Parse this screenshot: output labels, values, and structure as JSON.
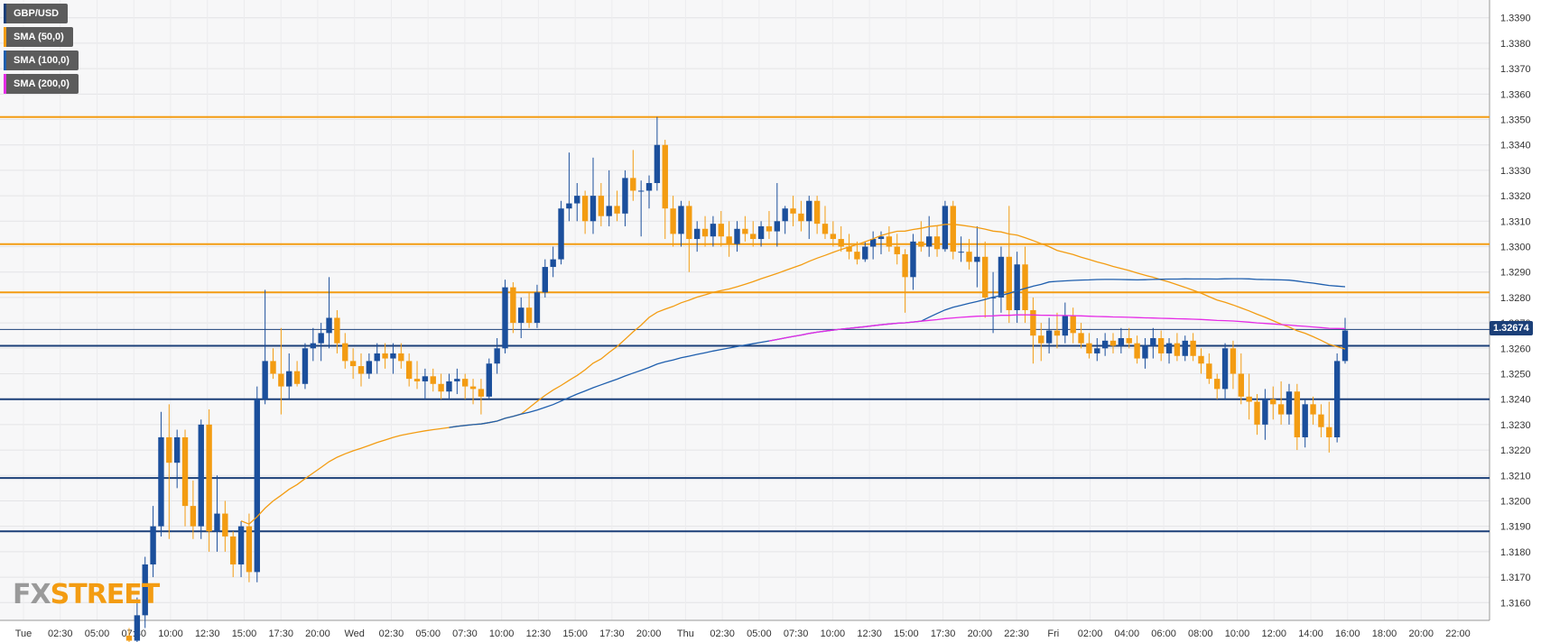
{
  "chart_data": {
    "type": "candlestick",
    "symbol": "GBP/USD",
    "legend": [
      {
        "label": "GBP/USD",
        "color": "#1b3f78"
      },
      {
        "label": "SMA (50,0)",
        "color": "#f39c12"
      },
      {
        "label": "SMA (100,0)",
        "color": "#1f5fae"
      },
      {
        "label": "SMA (200,0)",
        "color": "#e52ce6"
      }
    ],
    "ylim": [
      1.3153,
      1.3397
    ],
    "y_ticks": [
      "1.3390",
      "1.3380",
      "1.3370",
      "1.3360",
      "1.3350",
      "1.3340",
      "1.3330",
      "1.3320",
      "1.3310",
      "1.3300",
      "1.3290",
      "1.3280",
      "1.3270",
      "1.3260",
      "1.3250",
      "1.3240",
      "1.3230",
      "1.3220",
      "1.3210",
      "1.3200",
      "1.3190",
      "1.3180",
      "1.3170",
      "1.3160"
    ],
    "x_ticks": [
      "Tue",
      "02:30",
      "05:00",
      "07:30",
      "10:00",
      "12:30",
      "15:00",
      "17:30",
      "20:00",
      "Wed",
      "02:30",
      "05:00",
      "07:30",
      "10:00",
      "12:30",
      "15:00",
      "17:30",
      "20:00",
      "Thu",
      "02:30",
      "05:00",
      "07:30",
      "10:00",
      "12:30",
      "15:00",
      "17:30",
      "20:00",
      "22:30",
      "Fri",
      "02:00",
      "04:00",
      "06:00",
      "08:00",
      "10:00",
      "12:00",
      "14:00",
      "16:00",
      "18:00",
      "20:00",
      "22:00"
    ],
    "current_price": "1.32674",
    "current_price_value": 1.32674,
    "resistance_levels": [
      1.3351,
      1.3301,
      1.3282
    ],
    "support_levels": [
      1.3261,
      1.324,
      1.3209,
      1.3188
    ],
    "candles": [
      {
        "o": 1.3147,
        "h": 1.315,
        "l": 1.314,
        "c": 1.3145
      },
      {
        "o": 1.3145,
        "h": 1.3162,
        "l": 1.314,
        "c": 1.3155
      },
      {
        "o": 1.3155,
        "h": 1.3178,
        "l": 1.315,
        "c": 1.3175
      },
      {
        "o": 1.3175,
        "h": 1.3198,
        "l": 1.317,
        "c": 1.319
      },
      {
        "o": 1.319,
        "h": 1.3235,
        "l": 1.3186,
        "c": 1.3225
      },
      {
        "o": 1.3225,
        "h": 1.3238,
        "l": 1.3185,
        "c": 1.3215
      },
      {
        "o": 1.3215,
        "h": 1.3228,
        "l": 1.3205,
        "c": 1.3225
      },
      {
        "o": 1.3225,
        "h": 1.3228,
        "l": 1.319,
        "c": 1.3198
      },
      {
        "o": 1.3198,
        "h": 1.3208,
        "l": 1.3185,
        "c": 1.319
      },
      {
        "o": 1.319,
        "h": 1.3232,
        "l": 1.3185,
        "c": 1.323
      },
      {
        "o": 1.323,
        "h": 1.3236,
        "l": 1.318,
        "c": 1.3188
      },
      {
        "o": 1.3188,
        "h": 1.321,
        "l": 1.318,
        "c": 1.3195
      },
      {
        "o": 1.3195,
        "h": 1.32,
        "l": 1.318,
        "c": 1.3186
      },
      {
        "o": 1.3186,
        "h": 1.3188,
        "l": 1.317,
        "c": 1.3175
      },
      {
        "o": 1.3175,
        "h": 1.3192,
        "l": 1.317,
        "c": 1.319
      },
      {
        "o": 1.319,
        "h": 1.3195,
        "l": 1.3168,
        "c": 1.3172
      },
      {
        "o": 1.3172,
        "h": 1.3245,
        "l": 1.3168,
        "c": 1.324
      },
      {
        "o": 1.324,
        "h": 1.3283,
        "l": 1.3238,
        "c": 1.3255
      },
      {
        "o": 1.3255,
        "h": 1.326,
        "l": 1.3248,
        "c": 1.325
      },
      {
        "o": 1.325,
        "h": 1.3268,
        "l": 1.3234,
        "c": 1.3245
      },
      {
        "o": 1.3245,
        "h": 1.3258,
        "l": 1.324,
        "c": 1.3251
      },
      {
        "o": 1.3251,
        "h": 1.3255,
        "l": 1.3245,
        "c": 1.3246
      },
      {
        "o": 1.3246,
        "h": 1.3262,
        "l": 1.3244,
        "c": 1.326
      },
      {
        "o": 1.326,
        "h": 1.3268,
        "l": 1.3255,
        "c": 1.3262
      },
      {
        "o": 1.3262,
        "h": 1.327,
        "l": 1.3255,
        "c": 1.3266
      },
      {
        "o": 1.3266,
        "h": 1.3288,
        "l": 1.326,
        "c": 1.3272
      },
      {
        "o": 1.3272,
        "h": 1.3275,
        "l": 1.3258,
        "c": 1.3262
      },
      {
        "o": 1.3262,
        "h": 1.3266,
        "l": 1.3252,
        "c": 1.3255
      },
      {
        "o": 1.3255,
        "h": 1.326,
        "l": 1.3248,
        "c": 1.3253
      },
      {
        "o": 1.3253,
        "h": 1.3258,
        "l": 1.3245,
        "c": 1.325
      },
      {
        "o": 1.325,
        "h": 1.3258,
        "l": 1.3248,
        "c": 1.3255
      },
      {
        "o": 1.3255,
        "h": 1.3262,
        "l": 1.325,
        "c": 1.3258
      },
      {
        "o": 1.3258,
        "h": 1.3262,
        "l": 1.3252,
        "c": 1.3256
      },
      {
        "o": 1.3256,
        "h": 1.3262,
        "l": 1.325,
        "c": 1.3258
      },
      {
        "o": 1.3258,
        "h": 1.3262,
        "l": 1.3252,
        "c": 1.3255
      },
      {
        "o": 1.3255,
        "h": 1.3258,
        "l": 1.3245,
        "c": 1.3248
      },
      {
        "o": 1.3248,
        "h": 1.3255,
        "l": 1.3244,
        "c": 1.3247
      },
      {
        "o": 1.3247,
        "h": 1.3252,
        "l": 1.324,
        "c": 1.3249
      },
      {
        "o": 1.3249,
        "h": 1.3252,
        "l": 1.3243,
        "c": 1.3246
      },
      {
        "o": 1.3246,
        "h": 1.325,
        "l": 1.324,
        "c": 1.3243
      },
      {
        "o": 1.3243,
        "h": 1.325,
        "l": 1.324,
        "c": 1.3247
      },
      {
        "o": 1.3247,
        "h": 1.3252,
        "l": 1.3242,
        "c": 1.3248
      },
      {
        "o": 1.3248,
        "h": 1.325,
        "l": 1.324,
        "c": 1.3245
      },
      {
        "o": 1.3245,
        "h": 1.3248,
        "l": 1.3238,
        "c": 1.3244
      },
      {
        "o": 1.3244,
        "h": 1.3248,
        "l": 1.3234,
        "c": 1.3241
      },
      {
        "o": 1.3241,
        "h": 1.3256,
        "l": 1.324,
        "c": 1.3254
      },
      {
        "o": 1.3254,
        "h": 1.3264,
        "l": 1.325,
        "c": 1.326
      },
      {
        "o": 1.326,
        "h": 1.3287,
        "l": 1.3258,
        "c": 1.3284
      },
      {
        "o": 1.3284,
        "h": 1.3286,
        "l": 1.3266,
        "c": 1.327
      },
      {
        "o": 1.327,
        "h": 1.328,
        "l": 1.3264,
        "c": 1.3276
      },
      {
        "o": 1.3276,
        "h": 1.3282,
        "l": 1.3268,
        "c": 1.327
      },
      {
        "o": 1.327,
        "h": 1.3285,
        "l": 1.3268,
        "c": 1.3282
      },
      {
        "o": 1.3282,
        "h": 1.3295,
        "l": 1.328,
        "c": 1.3292
      },
      {
        "o": 1.3292,
        "h": 1.33,
        "l": 1.3288,
        "c": 1.3295
      },
      {
        "o": 1.3295,
        "h": 1.3318,
        "l": 1.3293,
        "c": 1.3315
      },
      {
        "o": 1.3315,
        "h": 1.3337,
        "l": 1.331,
        "c": 1.3317
      },
      {
        "o": 1.3317,
        "h": 1.3325,
        "l": 1.331,
        "c": 1.332
      },
      {
        "o": 1.332,
        "h": 1.3322,
        "l": 1.3305,
        "c": 1.331
      },
      {
        "o": 1.331,
        "h": 1.3335,
        "l": 1.3305,
        "c": 1.332
      },
      {
        "o": 1.332,
        "h": 1.3325,
        "l": 1.3308,
        "c": 1.3312
      },
      {
        "o": 1.3312,
        "h": 1.333,
        "l": 1.3308,
        "c": 1.3316
      },
      {
        "o": 1.3316,
        "h": 1.3322,
        "l": 1.331,
        "c": 1.3313
      },
      {
        "o": 1.3313,
        "h": 1.333,
        "l": 1.3308,
        "c": 1.3327
      },
      {
        "o": 1.3327,
        "h": 1.3338,
        "l": 1.3318,
        "c": 1.3322
      },
      {
        "o": 1.3322,
        "h": 1.3326,
        "l": 1.3304,
        "c": 1.3322
      },
      {
        "o": 1.3322,
        "h": 1.3328,
        "l": 1.3315,
        "c": 1.3325
      },
      {
        "o": 1.3325,
        "h": 1.3351,
        "l": 1.3322,
        "c": 1.334
      },
      {
        "o": 1.334,
        "h": 1.3342,
        "l": 1.3303,
        "c": 1.3315
      },
      {
        "o": 1.3315,
        "h": 1.332,
        "l": 1.33,
        "c": 1.3305
      },
      {
        "o": 1.3305,
        "h": 1.3318,
        "l": 1.33,
        "c": 1.3316
      },
      {
        "o": 1.3316,
        "h": 1.3318,
        "l": 1.329,
        "c": 1.3303
      },
      {
        "o": 1.3303,
        "h": 1.331,
        "l": 1.3298,
        "c": 1.3307
      },
      {
        "o": 1.3307,
        "h": 1.3312,
        "l": 1.33,
        "c": 1.3304
      },
      {
        "o": 1.3304,
        "h": 1.3312,
        "l": 1.33,
        "c": 1.3309
      },
      {
        "o": 1.3309,
        "h": 1.3314,
        "l": 1.33,
        "c": 1.3304
      },
      {
        "o": 1.3304,
        "h": 1.331,
        "l": 1.3296,
        "c": 1.3301
      },
      {
        "o": 1.3301,
        "h": 1.331,
        "l": 1.3298,
        "c": 1.3307
      },
      {
        "o": 1.3307,
        "h": 1.3312,
        "l": 1.3302,
        "c": 1.3305
      },
      {
        "o": 1.3305,
        "h": 1.331,
        "l": 1.33,
        "c": 1.3303
      },
      {
        "o": 1.3303,
        "h": 1.331,
        "l": 1.33,
        "c": 1.3308
      },
      {
        "o": 1.3308,
        "h": 1.3314,
        "l": 1.3303,
        "c": 1.3306
      },
      {
        "o": 1.3306,
        "h": 1.3325,
        "l": 1.33,
        "c": 1.331
      },
      {
        "o": 1.331,
        "h": 1.3316,
        "l": 1.3305,
        "c": 1.3315
      },
      {
        "o": 1.3315,
        "h": 1.332,
        "l": 1.3308,
        "c": 1.3313
      },
      {
        "o": 1.3313,
        "h": 1.3318,
        "l": 1.3306,
        "c": 1.331
      },
      {
        "o": 1.331,
        "h": 1.332,
        "l": 1.3303,
        "c": 1.3318
      },
      {
        "o": 1.3318,
        "h": 1.332,
        "l": 1.3305,
        "c": 1.3309
      },
      {
        "o": 1.3309,
        "h": 1.3316,
        "l": 1.3303,
        "c": 1.3305
      },
      {
        "o": 1.3305,
        "h": 1.331,
        "l": 1.33,
        "c": 1.3303
      },
      {
        "o": 1.3303,
        "h": 1.3308,
        "l": 1.3298,
        "c": 1.33
      },
      {
        "o": 1.33,
        "h": 1.3305,
        "l": 1.3295,
        "c": 1.3298
      },
      {
        "o": 1.3298,
        "h": 1.3302,
        "l": 1.3293,
        "c": 1.3295
      },
      {
        "o": 1.3295,
        "h": 1.3302,
        "l": 1.3294,
        "c": 1.33
      },
      {
        "o": 1.33,
        "h": 1.3306,
        "l": 1.3295,
        "c": 1.3303
      },
      {
        "o": 1.3303,
        "h": 1.3306,
        "l": 1.3297,
        "c": 1.3304
      },
      {
        "o": 1.3304,
        "h": 1.3308,
        "l": 1.3298,
        "c": 1.33
      },
      {
        "o": 1.33,
        "h": 1.3305,
        "l": 1.3293,
        "c": 1.3297
      },
      {
        "o": 1.3297,
        "h": 1.3299,
        "l": 1.3274,
        "c": 1.3288
      },
      {
        "o": 1.3288,
        "h": 1.3305,
        "l": 1.3283,
        "c": 1.3302
      },
      {
        "o": 1.3302,
        "h": 1.331,
        "l": 1.3298,
        "c": 1.33
      },
      {
        "o": 1.33,
        "h": 1.3312,
        "l": 1.3296,
        "c": 1.3304
      },
      {
        "o": 1.3304,
        "h": 1.3308,
        "l": 1.3296,
        "c": 1.3299
      },
      {
        "o": 1.3299,
        "h": 1.3318,
        "l": 1.3298,
        "c": 1.3316
      },
      {
        "o": 1.3316,
        "h": 1.3318,
        "l": 1.3295,
        "c": 1.3298
      },
      {
        "o": 1.3298,
        "h": 1.3304,
        "l": 1.3294,
        "c": 1.3298
      },
      {
        "o": 1.3298,
        "h": 1.3303,
        "l": 1.3291,
        "c": 1.3294
      },
      {
        "o": 1.3294,
        "h": 1.3308,
        "l": 1.3284,
        "c": 1.3296
      },
      {
        "o": 1.3296,
        "h": 1.3302,
        "l": 1.3272,
        "c": 1.328
      },
      {
        "o": 1.328,
        "h": 1.329,
        "l": 1.3266,
        "c": 1.328
      },
      {
        "o": 1.328,
        "h": 1.33,
        "l": 1.3274,
        "c": 1.3296
      },
      {
        "o": 1.3296,
        "h": 1.3316,
        "l": 1.327,
        "c": 1.3275
      },
      {
        "o": 1.3275,
        "h": 1.3298,
        "l": 1.327,
        "c": 1.3293
      },
      {
        "o": 1.3293,
        "h": 1.33,
        "l": 1.327,
        "c": 1.3275
      },
      {
        "o": 1.3275,
        "h": 1.328,
        "l": 1.3254,
        "c": 1.3265
      },
      {
        "o": 1.3265,
        "h": 1.327,
        "l": 1.3255,
        "c": 1.3262
      },
      {
        "o": 1.3262,
        "h": 1.3272,
        "l": 1.3258,
        "c": 1.3267
      },
      {
        "o": 1.3267,
        "h": 1.3274,
        "l": 1.326,
        "c": 1.3265
      },
      {
        "o": 1.3265,
        "h": 1.3278,
        "l": 1.3262,
        "c": 1.3273
      },
      {
        "o": 1.3273,
        "h": 1.3276,
        "l": 1.3262,
        "c": 1.3266
      },
      {
        "o": 1.3266,
        "h": 1.327,
        "l": 1.326,
        "c": 1.3262
      },
      {
        "o": 1.3262,
        "h": 1.3266,
        "l": 1.3256,
        "c": 1.3258
      },
      {
        "o": 1.3258,
        "h": 1.3264,
        "l": 1.3255,
        "c": 1.326
      },
      {
        "o": 1.326,
        "h": 1.3266,
        "l": 1.3257,
        "c": 1.3263
      },
      {
        "o": 1.3263,
        "h": 1.3266,
        "l": 1.3258,
        "c": 1.3261
      },
      {
        "o": 1.3261,
        "h": 1.3268,
        "l": 1.3258,
        "c": 1.3264
      },
      {
        "o": 1.3264,
        "h": 1.3268,
        "l": 1.326,
        "c": 1.3262
      },
      {
        "o": 1.3262,
        "h": 1.3265,
        "l": 1.3254,
        "c": 1.3256
      },
      {
        "o": 1.3256,
        "h": 1.3264,
        "l": 1.3252,
        "c": 1.3261
      },
      {
        "o": 1.3261,
        "h": 1.3268,
        "l": 1.3256,
        "c": 1.3264
      },
      {
        "o": 1.3264,
        "h": 1.3267,
        "l": 1.3255,
        "c": 1.3258
      },
      {
        "o": 1.3258,
        "h": 1.3264,
        "l": 1.3254,
        "c": 1.3262
      },
      {
        "o": 1.3262,
        "h": 1.3266,
        "l": 1.3255,
        "c": 1.3257
      },
      {
        "o": 1.3257,
        "h": 1.3265,
        "l": 1.3255,
        "c": 1.3263
      },
      {
        "o": 1.3263,
        "h": 1.3266,
        "l": 1.3255,
        "c": 1.3257
      },
      {
        "o": 1.3257,
        "h": 1.326,
        "l": 1.325,
        "c": 1.3254
      },
      {
        "o": 1.3254,
        "h": 1.3258,
        "l": 1.3246,
        "c": 1.3248
      },
      {
        "o": 1.3248,
        "h": 1.325,
        "l": 1.324,
        "c": 1.3244
      },
      {
        "o": 1.3244,
        "h": 1.3262,
        "l": 1.324,
        "c": 1.326
      },
      {
        "o": 1.326,
        "h": 1.3263,
        "l": 1.3244,
        "c": 1.325
      },
      {
        "o": 1.325,
        "h": 1.3258,
        "l": 1.3238,
        "c": 1.3241
      },
      {
        "o": 1.3241,
        "h": 1.325,
        "l": 1.3232,
        "c": 1.3239
      },
      {
        "o": 1.3239,
        "h": 1.3242,
        "l": 1.3226,
        "c": 1.323
      },
      {
        "o": 1.323,
        "h": 1.3244,
        "l": 1.3224,
        "c": 1.324
      },
      {
        "o": 1.324,
        "h": 1.3245,
        "l": 1.3232,
        "c": 1.3238
      },
      {
        "o": 1.3238,
        "h": 1.3247,
        "l": 1.323,
        "c": 1.3234
      },
      {
        "o": 1.3234,
        "h": 1.3246,
        "l": 1.323,
        "c": 1.3243
      },
      {
        "o": 1.3243,
        "h": 1.3246,
        "l": 1.322,
        "c": 1.3225
      },
      {
        "o": 1.3225,
        "h": 1.324,
        "l": 1.3221,
        "c": 1.3238
      },
      {
        "o": 1.3238,
        "h": 1.3241,
        "l": 1.323,
        "c": 1.3234
      },
      {
        "o": 1.3234,
        "h": 1.3238,
        "l": 1.3225,
        "c": 1.3229
      },
      {
        "o": 1.3229,
        "h": 1.3239,
        "l": 1.3219,
        "c": 1.3225
      },
      {
        "o": 1.3225,
        "h": 1.3258,
        "l": 1.3223,
        "c": 1.3255
      },
      {
        "o": 1.3255,
        "h": 1.3272,
        "l": 1.3254,
        "c": 1.3267
      }
    ]
  },
  "brand": {
    "name_left": "FX",
    "name_right": "STREET"
  }
}
